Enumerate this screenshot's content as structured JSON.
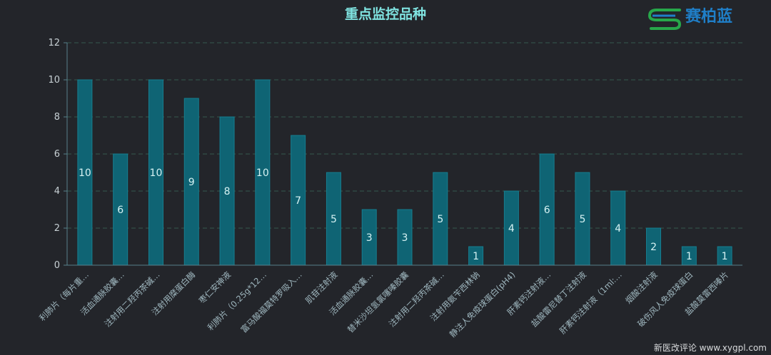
{
  "header": {
    "title": "重点监控品种"
  },
  "logo": {
    "text": "赛柏蓝",
    "icon": "s-logo-icon",
    "colors": {
      "green": "#27a84a",
      "blue": "#1f7fc8"
    }
  },
  "watermark": {
    "text": "新医改评论 www.xygpl.com"
  },
  "colors": {
    "bar": "#0f6474",
    "bar_border": "#167e90",
    "grid": "#36594f",
    "axis": "#57808a",
    "title": "#7fe3e0"
  },
  "chart_data": {
    "type": "bar",
    "title": "重点监控品种",
    "xlabel": "",
    "ylabel": "",
    "ylim": [
      0,
      12
    ],
    "yticks": [
      0,
      2,
      4,
      6,
      8,
      10,
      12
    ],
    "grid": true,
    "categories": [
      "利肺片（每片重…",
      "活血通脉胶囊…",
      "注射用二羟丙茶碱…",
      "注射用糜蛋白酶",
      "枣仁安神液",
      "利肺片（0.25g*12…",
      "富马酸福莫特罗吸入…",
      "肌苷注射液",
      "活血通脉胶囊…",
      "替米沙坦氢氯噻嗪胶囊",
      "注射用二羟丙茶碱…",
      "注射用氨苄西林钠",
      "静注人免疫球蛋白(pH4)",
      "肝素钙注射液…",
      "盐酸雷尼替丁注射液",
      "肝素钙注射液（1ml:…",
      "烟酸注射液",
      "破伤风人免疫球蛋白",
      "盐酸莫雷西嗪片"
    ],
    "values": [
      10,
      6,
      10,
      9,
      8,
      10,
      7,
      5,
      3,
      3,
      5,
      1,
      4,
      6,
      5,
      4,
      2,
      1,
      1
    ]
  }
}
